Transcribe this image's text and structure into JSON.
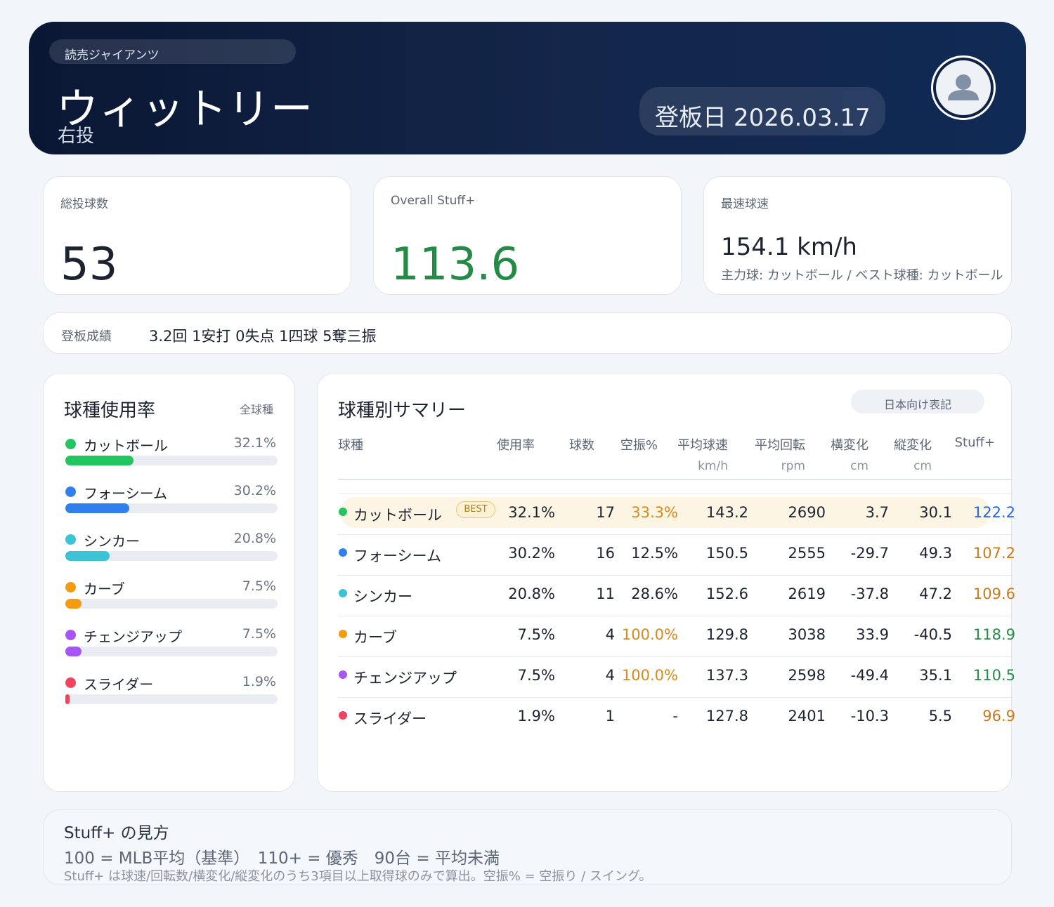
{
  "header": {
    "team": "読売ジャイアンツ",
    "name": "ウィットリー",
    "throws": "右投",
    "date_label": "登板日",
    "date": "2026.03.17"
  },
  "kpis": {
    "total_pitches": {
      "label": "総投球数",
      "value": "53"
    },
    "stuff": {
      "label": "Overall Stuff+",
      "value": "113.6"
    },
    "max_velo": {
      "label": "最速球速",
      "value": "154.1 km/h",
      "sub": "主力球: カットボール / ベスト球種: カットボール"
    }
  },
  "result": {
    "label": "登板成績",
    "value": "3.2回 1安打 0失点 1四球 5奪三振"
  },
  "usage": {
    "title": "球種使用率",
    "scope": "全球種",
    "items": [
      {
        "name": "カットボール",
        "pct": "32.1%",
        "value": 32.1,
        "color": "#22c55e"
      },
      {
        "name": "フォーシーム",
        "pct": "30.2%",
        "value": 30.2,
        "color": "#2f80ed"
      },
      {
        "name": "シンカー",
        "pct": "20.8%",
        "value": 20.8,
        "color": "#3cc4d6"
      },
      {
        "name": "カーブ",
        "pct": "7.5%",
        "value": 7.5,
        "color": "#f39c12"
      },
      {
        "name": "チェンジアップ",
        "pct": "7.5%",
        "value": 7.5,
        "color": "#a855f7"
      },
      {
        "name": "スライダー",
        "pct": "1.9%",
        "value": 1.9,
        "color": "#f0435e"
      }
    ]
  },
  "summary": {
    "title": "球種別サマリー",
    "toggle": "日本向け表記",
    "best_label": "BEST",
    "headers": {
      "pitch": "球種",
      "usage": "使用率",
      "count": "球数",
      "whiff": "空振%",
      "velo": "平均球速",
      "velo_unit": "km/h",
      "spin": "平均回転",
      "spin_unit": "rpm",
      "hbreak": "横変化",
      "hbreak_unit": "cm",
      "vbreak": "縦変化",
      "vbreak_unit": "cm",
      "stuff": "Stuff+"
    },
    "rows": [
      {
        "name": "カットボール",
        "color": "#22c55e",
        "usage": "32.1%",
        "count": "17",
        "whiff": "33.3%",
        "whiff_color": "#d88a1c",
        "velo": "143.2",
        "spin": "2690",
        "hb": "3.7",
        "vb": "30.1",
        "stuff": "122.2",
        "stuff_color": "#2563eb",
        "best": true
      },
      {
        "name": "フォーシーム",
        "color": "#2f80ed",
        "usage": "30.2%",
        "count": "16",
        "whiff": "12.5%",
        "whiff_color": "#1c2230",
        "velo": "150.5",
        "spin": "2555",
        "hb": "-29.7",
        "vb": "49.3",
        "stuff": "107.2",
        "stuff_color": "#c97a1d",
        "best": false
      },
      {
        "name": "シンカー",
        "color": "#3cc4d6",
        "usage": "20.8%",
        "count": "11",
        "whiff": "28.6%",
        "whiff_color": "#1c2230",
        "velo": "152.6",
        "spin": "2619",
        "hb": "-37.8",
        "vb": "47.2",
        "stuff": "109.6",
        "stuff_color": "#c97a1d",
        "best": false
      },
      {
        "name": "カーブ",
        "color": "#f39c12",
        "usage": "7.5%",
        "count": "4",
        "whiff": "100.0%",
        "whiff_color": "#d88a1c",
        "velo": "129.8",
        "spin": "3038",
        "hb": "33.9",
        "vb": "-40.5",
        "stuff": "118.9",
        "stuff_color": "#248b46",
        "best": false
      },
      {
        "name": "チェンジアップ",
        "color": "#a855f7",
        "usage": "7.5%",
        "count": "4",
        "whiff": "100.0%",
        "whiff_color": "#d88a1c",
        "velo": "137.3",
        "spin": "2598",
        "hb": "-49.4",
        "vb": "35.1",
        "stuff": "110.5",
        "stuff_color": "#248b46",
        "best": false
      },
      {
        "name": "スライダー",
        "color": "#f0435e",
        "usage": "1.9%",
        "count": "1",
        "whiff": "-",
        "whiff_color": "#1c2230",
        "velo": "127.8",
        "spin": "2401",
        "hb": "-10.3",
        "vb": "5.5",
        "stuff": "96.9",
        "stuff_color": "#c97a1d",
        "best": false
      }
    ]
  },
  "legend": {
    "title": "Stuff+ の見方",
    "main": "100 = MLB平均（基準）　110+ = 優秀　90台 = 平均未満",
    "note": "Stuff+ は球速/回転数/横変化/縦変化のうち3項目以上取得球のみで算出。空振% = 空振り / スイング。"
  }
}
